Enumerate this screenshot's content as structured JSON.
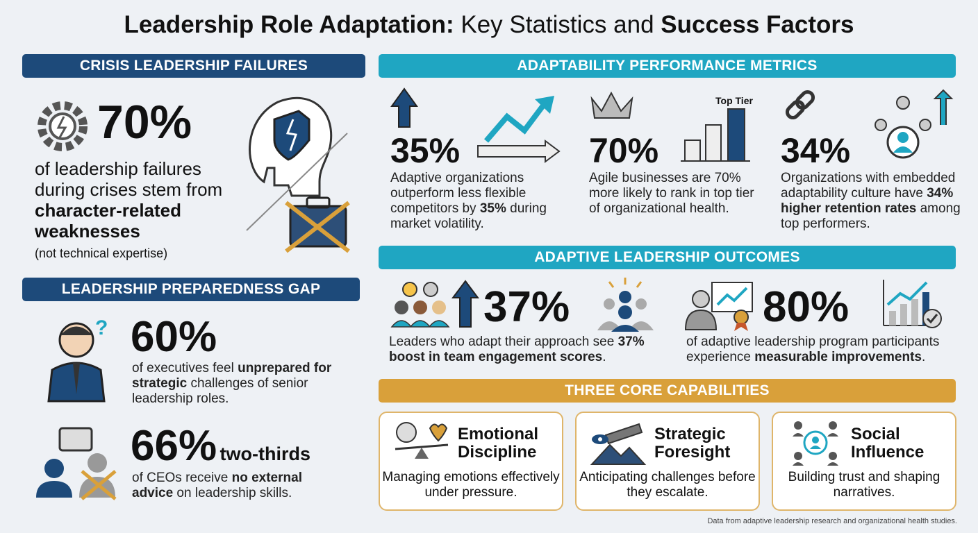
{
  "title": [
    {
      "text": "Leadership Role Adaptation:",
      "bold": true
    },
    {
      "text": " Key Statistics and ",
      "bold": false
    },
    {
      "text": "Success Factors",
      "bold": true
    }
  ],
  "crisis": {
    "header": "CRISIS LEADERSHIP FAILURES",
    "stat": "70%",
    "description": [
      {
        "text": "of leadership failures during crises stem from ",
        "bold": false
      },
      {
        "text": "character-related weaknesses",
        "bold": true
      }
    ],
    "note": "(not technical expertise)"
  },
  "preparedness": {
    "header": "LEADERSHIP PREPAREDNESS GAP",
    "items": [
      {
        "stat": "60%",
        "description": [
          {
            "text": "of executives feel ",
            "bold": false
          },
          {
            "text": "unprepared for strategic",
            "bold": true
          },
          {
            "text": " challenges of senior leadership roles.",
            "bold": false
          }
        ]
      },
      {
        "stat": "66%",
        "stat_note": "two-thirds",
        "description": [
          {
            "text": "of CEOs receive ",
            "bold": false
          },
          {
            "text": "no external advice",
            "bold": true
          },
          {
            "text": " on leadership skills.",
            "bold": false
          }
        ]
      }
    ]
  },
  "metrics": {
    "header": "ADAPTABILITY PERFORMANCE METRICS",
    "items": [
      {
        "stat": "35%",
        "description": [
          {
            "text": "Adaptive organizations outperform less flexible competitors by ",
            "bold": false
          },
          {
            "text": "35%",
            "bold": true
          },
          {
            "text": " during market volatility.",
            "bold": false
          }
        ]
      },
      {
        "stat": "70%",
        "chart_label": "Top Tier",
        "description": [
          {
            "text": "Agile businesses are 70% more likely to rank in top tier of organizational health.",
            "bold": false
          }
        ]
      },
      {
        "stat": "34%",
        "description": [
          {
            "text": "Organizations with embedded adaptability culture have ",
            "bold": false
          },
          {
            "text": "34% higher retention rates",
            "bold": true
          },
          {
            "text": " among top performers.",
            "bold": false
          }
        ]
      }
    ]
  },
  "outcomes": {
    "header": "ADAPTIVE LEADERSHIP OUTCOMES",
    "items": [
      {
        "stat": "37%",
        "description": [
          {
            "text": "Leaders who adapt their approach see ",
            "bold": false
          },
          {
            "text": "37% boost in team engagement scores",
            "bold": true
          },
          {
            "text": ".",
            "bold": false
          }
        ]
      },
      {
        "stat": "80%",
        "description": [
          {
            "text": "of adaptive leadership program participants experience ",
            "bold": false
          },
          {
            "text": "measurable improvements",
            "bold": true
          },
          {
            "text": ".",
            "bold": false
          }
        ]
      }
    ]
  },
  "capabilities": {
    "header": "THREE CORE CAPABILITIES",
    "items": [
      {
        "title": "Emotional Discipline",
        "description": "Managing emotions effectively under pressure."
      },
      {
        "title": "Strategic Foresight",
        "description": "Anticipating challenges before they escalate."
      },
      {
        "title": "Social Influence",
        "description": "Building trust and shaping narratives."
      }
    ]
  },
  "footer": "Data from adaptive leadership research and organizational health studies."
}
